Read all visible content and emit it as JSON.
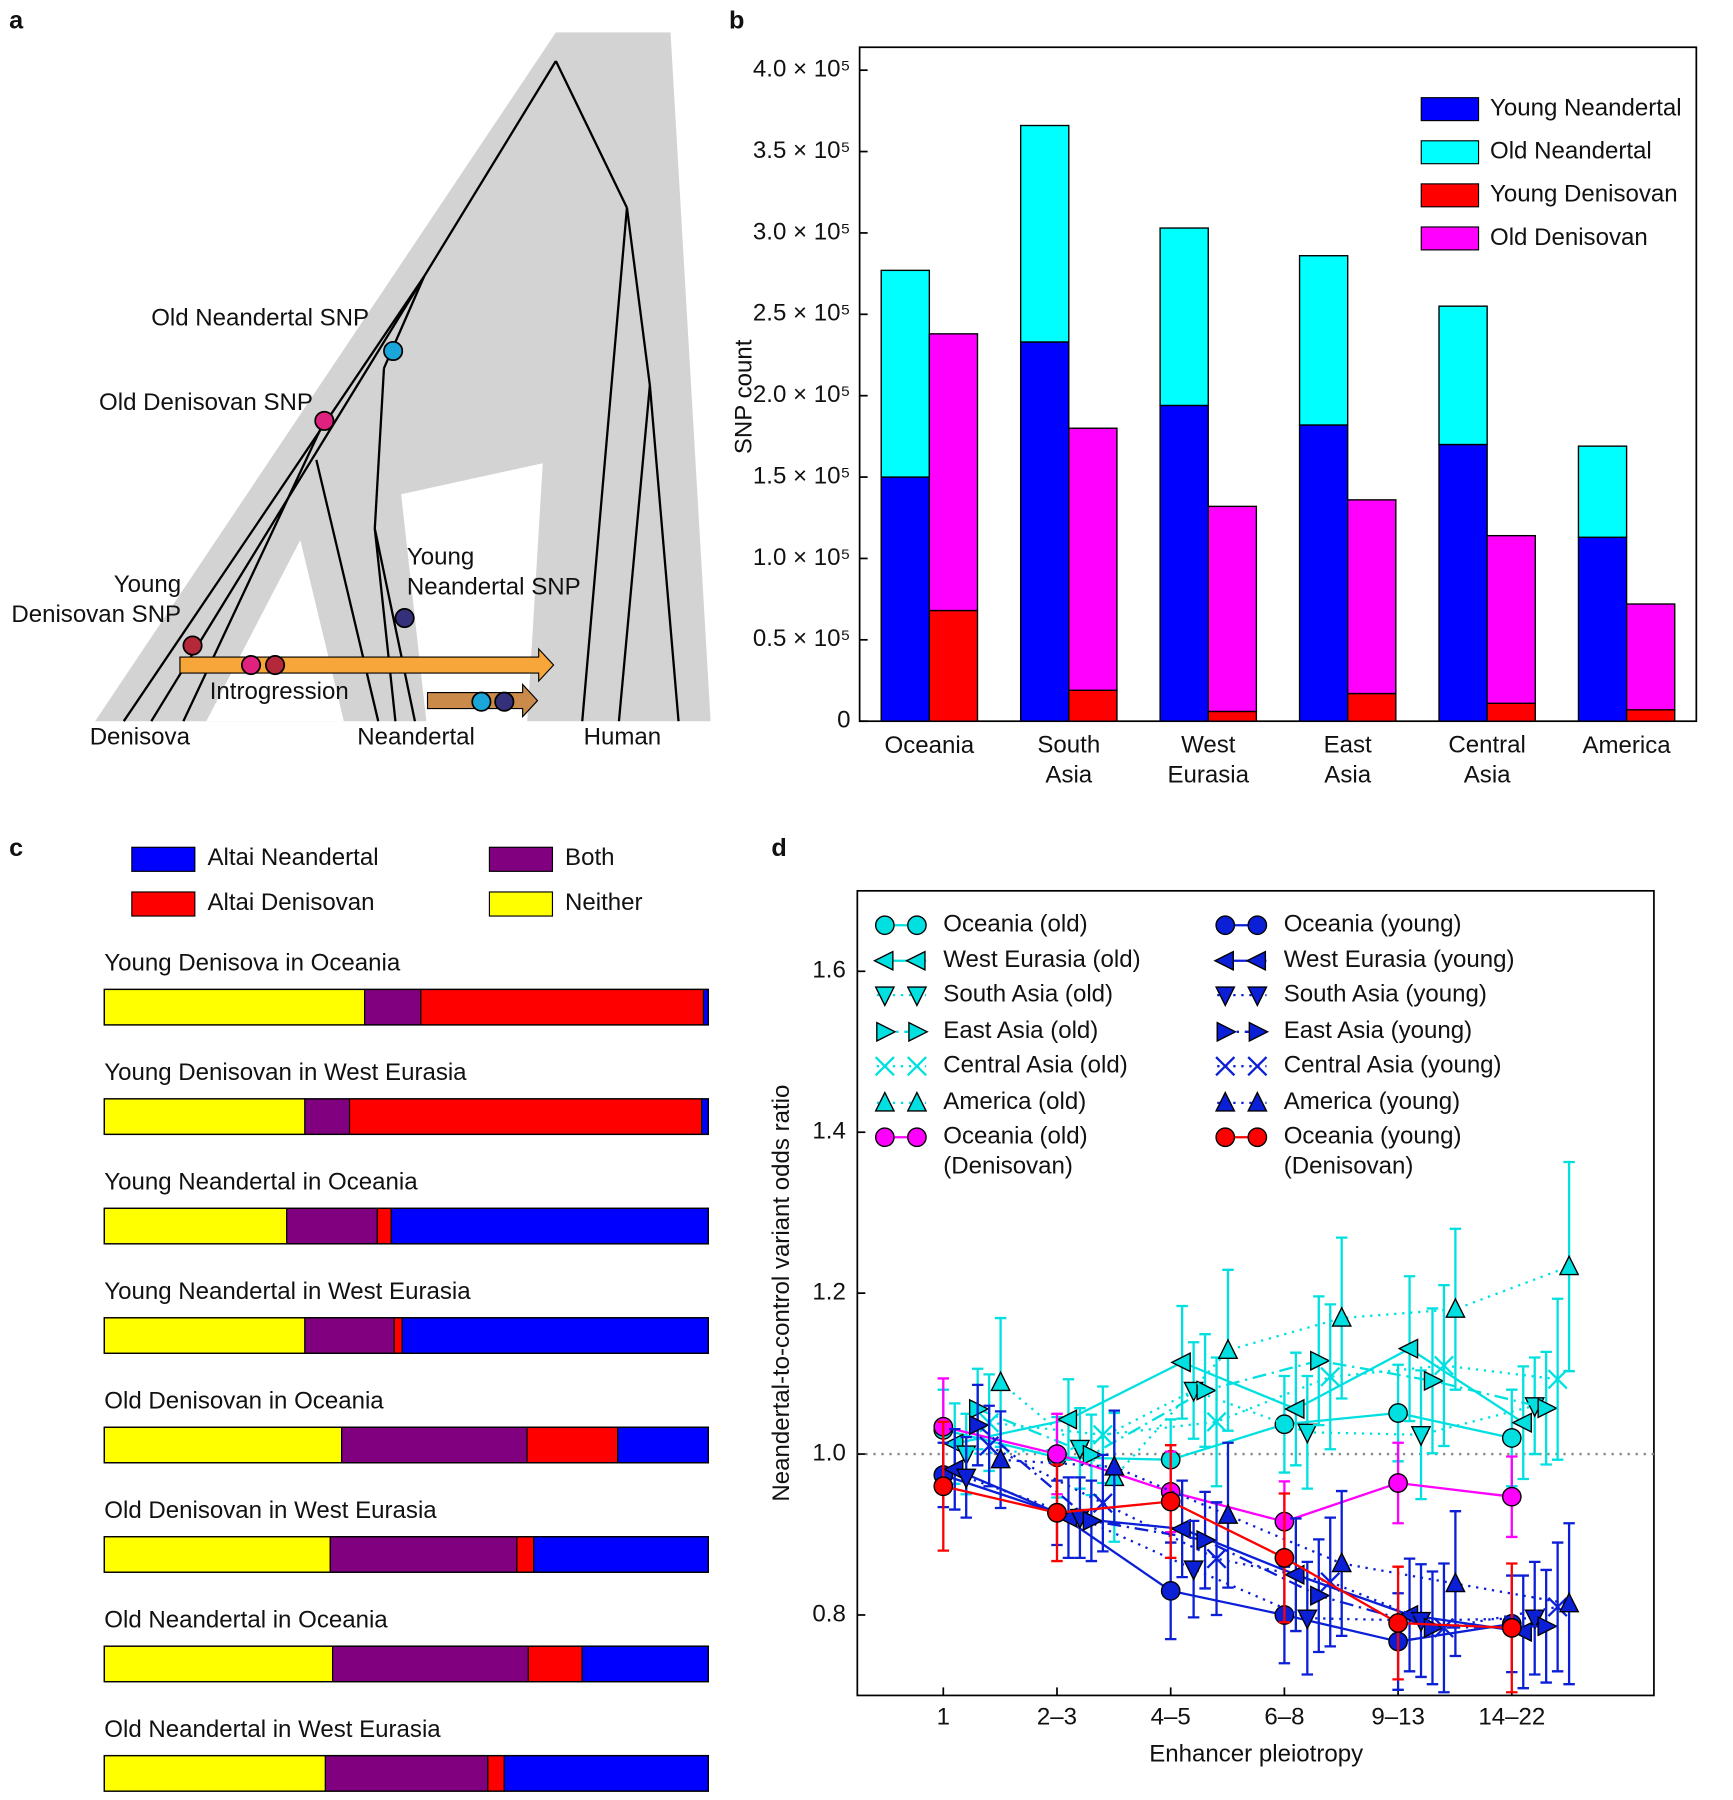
{
  "diagram": {
    "panel": "a",
    "labels": [
      "Old Neandertal SNP",
      "Old Denisovan SNP",
      "Young\nDenisovan SNP",
      "Young\nNeandertal SNP",
      "Introgression",
      "Denisova",
      "Neandertal",
      "Human"
    ]
  },
  "chart_data": [
    {
      "type": "bar",
      "panel": "b",
      "ylabel": "SNP count",
      "categories": [
        "Oceania",
        "South Asia",
        "West Eurasia",
        "East Asia",
        "Central Asia",
        "America"
      ],
      "series": [
        {
          "name": "Young Neandertal",
          "color": "#0000ff",
          "values": [
            150000,
            233000,
            194000,
            182000,
            170000,
            113000
          ]
        },
        {
          "name": "Old Neandertal",
          "color": "#00ffff",
          "values": [
            127000,
            133000,
            109000,
            104000,
            85000,
            56000
          ]
        },
        {
          "name": "Young Denisovan",
          "color": "#ff0000",
          "values": [
            68000,
            19000,
            6000,
            17000,
            11000,
            7000
          ]
        },
        {
          "name": "Old Denisovan",
          "color": "#ff00ff",
          "values": [
            170000,
            161000,
            126000,
            119000,
            103000,
            65000
          ]
        }
      ],
      "ylim": [
        0,
        400000
      ],
      "yticks": [
        0,
        {
          "value": 50000,
          "label": "0.5 × 10⁵"
        },
        {
          "value": 100000,
          "label": "1.0 × 10⁵"
        },
        {
          "value": 150000,
          "label": "1.5 × 10⁵"
        },
        {
          "value": 200000,
          "label": "2.0 × 10⁵"
        },
        {
          "value": 250000,
          "label": "2.5 × 10⁵"
        },
        {
          "value": 300000,
          "label": "3.0 × 10⁵"
        },
        {
          "value": 350000,
          "label": "3.5 × 10⁵"
        },
        {
          "value": 400000,
          "label": "4.0 × 10⁵"
        }
      ],
      "legend": "upper right"
    },
    {
      "type": "stackedbar",
      "panel": "c",
      "categories": [
        "Young Denisova in Oceania",
        "Young Denisovan in West Eurasia",
        "Young Neandertal in Oceania",
        "Young Neandertal in West Eurasia",
        "Old Denisovan in Oceania",
        "Old Denisovan in West Eurasia",
        "Old Neandertal in Oceania",
        "Old Neandertal in West Eurasia"
      ],
      "series": [
        {
          "name": "Altai Neandertal",
          "color": "#0000ff",
          "values": [
            0.8,
            1.1,
            52.5,
            50.7,
            15.0,
            28.9,
            20.9,
            33.8
          ]
        },
        {
          "name": "Altai Denisovan",
          "color": "#ff0000",
          "values": [
            46.8,
            58.3,
            2.3,
            1.3,
            15.0,
            2.8,
            8.9,
            2.7
          ]
        },
        {
          "name": "Both",
          "color": "#800080",
          "values": [
            9.3,
            7.4,
            15.0,
            14.8,
            30.7,
            30.9,
            32.4,
            26.9
          ]
        },
        {
          "name": "Neither",
          "color": "#ffff00",
          "values": [
            43.1,
            33.2,
            30.2,
            33.2,
            39.3,
            37.4,
            37.8,
            36.6
          ]
        }
      ],
      "xlim": [
        0,
        100
      ]
    },
    {
      "type": "line",
      "panel": "d",
      "xlabel": "Enhancer pleiotropy",
      "ylabel": "Neandertal-to-control variant odds ratio",
      "categories": [
        "1",
        "2–3",
        "4–5",
        "6–8",
        "9–13",
        "14–22"
      ],
      "ylim": [
        0.7,
        1.7
      ],
      "yticks": [
        0.8,
        {
          "value": 1,
          "label": "1.0"
        },
        1.2,
        1.4,
        1.6
      ],
      "refline": 1,
      "series": [
        {
          "name": "Oceania (old)",
          "color": "#00e0e0",
          "marker": "circle",
          "linestyle": "solid",
          "values": [
            1.03,
            0.996,
            0.993,
            1.037,
            1.051,
            1.02
          ],
          "errors": [
            0.05,
            0.05,
            0.05,
            0.06,
            0.06,
            0.06
          ]
        },
        {
          "name": "West Eurasia (old)",
          "color": "#00e0e0",
          "marker": "triangle-left",
          "linestyle": "solid",
          "values": [
            1.013,
            1.043,
            1.114,
            1.056,
            1.131,
            1.039
          ],
          "errors": [
            0.05,
            0.05,
            0.07,
            0.07,
            0.09,
            0.07
          ]
        },
        {
          "name": "South Asia (old)",
          "color": "#00e0e0",
          "marker": "triangle-down",
          "linestyle": "dotted",
          "values": [
            1.0,
            1.007,
            1.079,
            1.027,
            1.024,
            1.06
          ],
          "errors": [
            0.05,
            0.05,
            0.06,
            0.07,
            0.08,
            0.06
          ]
        },
        {
          "name": "East Asia (old)",
          "color": "#00e0e0",
          "marker": "triangle-right",
          "linestyle": "dashdot",
          "values": [
            1.056,
            0.999,
            1.079,
            1.116,
            1.091,
            1.057
          ],
          "errors": [
            0.05,
            0.05,
            0.07,
            0.08,
            0.09,
            0.07
          ]
        },
        {
          "name": "Central Asia (old)",
          "color": "#00e0e0",
          "marker": "x",
          "linestyle": "dotted",
          "values": [
            1.039,
            1.024,
            1.04,
            1.096,
            1.11,
            1.093
          ],
          "errors": [
            0.06,
            0.06,
            0.08,
            0.09,
            0.1,
            0.1
          ]
        },
        {
          "name": "America (old)",
          "color": "#00e0e0",
          "marker": "triangle-up",
          "linestyle": "dotted",
          "values": [
            1.089,
            0.971,
            1.129,
            1.169,
            1.18,
            1.233
          ],
          "errors": [
            0.08,
            0.08,
            0.1,
            0.1,
            0.1,
            0.13
          ]
        },
        {
          "name": "Oceania (old)\n(Denisovan)",
          "color": "#ff00ff",
          "marker": "circle",
          "linestyle": "solid",
          "values": [
            1.034,
            1.0,
            0.953,
            0.916,
            0.964,
            0.947
          ],
          "errors": [
            0.06,
            0.05,
            0.05,
            0.05,
            0.05,
            0.05
          ]
        },
        {
          "name": "Oceania (young)",
          "color": "#0a1fd6",
          "marker": "circle",
          "linestyle": "solid",
          "values": [
            0.974,
            0.927,
            0.83,
            0.8,
            0.767,
            0.789
          ],
          "errors": [
            0.04,
            0.04,
            0.06,
            0.06,
            0.06,
            0.06
          ]
        },
        {
          "name": "West Eurasia (young)",
          "color": "#0a1fd6",
          "marker": "triangle-left",
          "linestyle": "solid",
          "values": [
            0.981,
            0.921,
            0.907,
            0.85,
            0.8,
            0.779
          ],
          "errors": [
            0.05,
            0.05,
            0.06,
            0.07,
            0.07,
            0.07
          ]
        },
        {
          "name": "South Asia (young)",
          "color": "#0a1fd6",
          "marker": "triangle-down",
          "linestyle": "dotted",
          "values": [
            0.971,
            0.921,
            0.857,
            0.796,
            0.793,
            0.796
          ],
          "errors": [
            0.05,
            0.05,
            0.06,
            0.07,
            0.07,
            0.07
          ]
        },
        {
          "name": "East Asia (young)",
          "color": "#0a1fd6",
          "marker": "triangle-right",
          "linestyle": "dashdot",
          "values": [
            1.036,
            0.917,
            0.893,
            0.824,
            0.784,
            0.786
          ],
          "errors": [
            0.05,
            0.05,
            0.06,
            0.07,
            0.07,
            0.07
          ]
        },
        {
          "name": "Central Asia (young)",
          "color": "#0a1fd6",
          "marker": "x",
          "linestyle": "dotted",
          "values": [
            1.01,
            0.939,
            0.87,
            0.841,
            0.784,
            0.81
          ],
          "errors": [
            0.05,
            0.06,
            0.07,
            0.08,
            0.08,
            0.08
          ]
        },
        {
          "name": "America (young)",
          "color": "#0a1fd6",
          "marker": "triangle-up",
          "linestyle": "dotted",
          "values": [
            0.993,
            0.984,
            0.924,
            0.864,
            0.839,
            0.814
          ],
          "errors": [
            0.06,
            0.07,
            0.09,
            0.09,
            0.09,
            0.1
          ]
        },
        {
          "name": "Oceania (young)\n(Denisovan)",
          "color": "#ff0000",
          "marker": "circle",
          "linestyle": "solid",
          "values": [
            0.96,
            0.927,
            0.941,
            0.871,
            0.79,
            0.784
          ],
          "errors": [
            0.08,
            0.06,
            0.07,
            0.08,
            0.07,
            0.08
          ]
        }
      ]
    }
  ]
}
